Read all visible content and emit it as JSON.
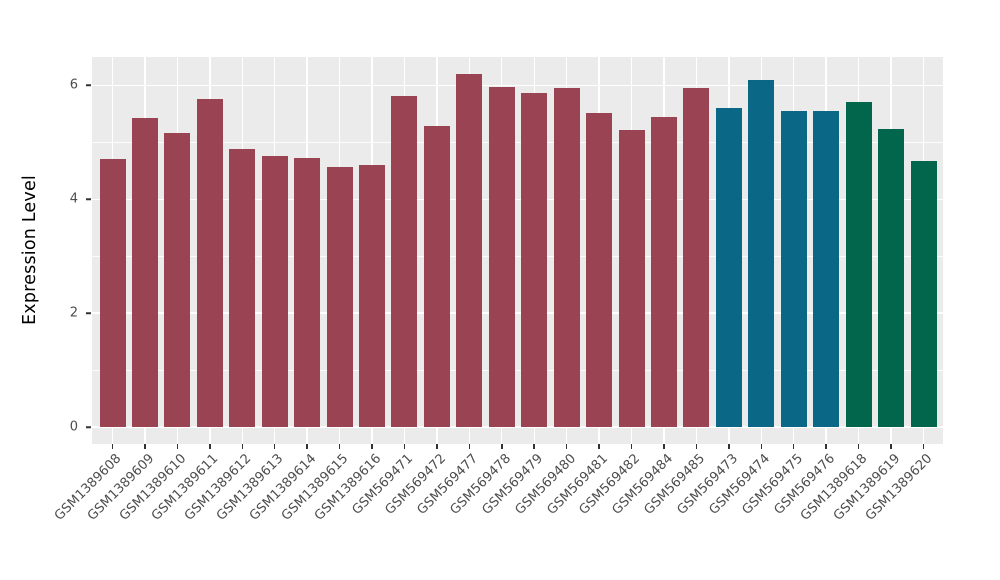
{
  "chart_data": {
    "type": "bar",
    "title": "",
    "xlabel": "",
    "ylabel": "Expression Level",
    "ylim": [
      0,
      6.5
    ],
    "yticks_major": [
      0,
      2,
      4,
      6
    ],
    "yticks_minor": [
      1,
      3,
      5
    ],
    "legend_position": "none",
    "grid": "white major+minor horizontal lines and per-category vertical lines on grey panel",
    "panel_bg": "#EBEBEB",
    "grid_color": "#FFFFFF",
    "axis_text_color": "#4D4D4D",
    "groups": [
      {
        "name": "group-red",
        "color": "#9A4352"
      },
      {
        "name": "group-blue",
        "color": "#0B6786"
      },
      {
        "name": "group-green",
        "color": "#01664B"
      }
    ],
    "bars": [
      {
        "label": "GSM1389608",
        "value": 4.7,
        "group": 0
      },
      {
        "label": "GSM1389609",
        "value": 5.43,
        "group": 0
      },
      {
        "label": "GSM1389610",
        "value": 5.17,
        "group": 0
      },
      {
        "label": "GSM1389611",
        "value": 5.77,
        "group": 0
      },
      {
        "label": "GSM1389612",
        "value": 4.89,
        "group": 0
      },
      {
        "label": "GSM1389613",
        "value": 4.76,
        "group": 0
      },
      {
        "label": "GSM1389614",
        "value": 4.73,
        "group": 0
      },
      {
        "label": "GSM1389615",
        "value": 4.56,
        "group": 0
      },
      {
        "label": "GSM1389616",
        "value": 4.6,
        "group": 0
      },
      {
        "label": "GSM569471",
        "value": 5.81,
        "group": 0
      },
      {
        "label": "GSM569472",
        "value": 5.28,
        "group": 0
      },
      {
        "label": "GSM569477",
        "value": 6.2,
        "group": 0
      },
      {
        "label": "GSM569478",
        "value": 5.97,
        "group": 0
      },
      {
        "label": "GSM569479",
        "value": 5.86,
        "group": 0
      },
      {
        "label": "GSM569480",
        "value": 5.95,
        "group": 0
      },
      {
        "label": "GSM569481",
        "value": 5.52,
        "group": 0
      },
      {
        "label": "GSM569482",
        "value": 5.22,
        "group": 0
      },
      {
        "label": "GSM569484",
        "value": 5.44,
        "group": 0
      },
      {
        "label": "GSM569485",
        "value": 5.95,
        "group": 0
      },
      {
        "label": "GSM569473",
        "value": 5.6,
        "group": 1
      },
      {
        "label": "GSM569474",
        "value": 6.09,
        "group": 1
      },
      {
        "label": "GSM569475",
        "value": 5.56,
        "group": 1
      },
      {
        "label": "GSM569476",
        "value": 5.56,
        "group": 1
      },
      {
        "label": "GSM1389618",
        "value": 5.71,
        "group": 2
      },
      {
        "label": "GSM1389619",
        "value": 5.24,
        "group": 2
      },
      {
        "label": "GSM1389620",
        "value": 4.67,
        "group": 2
      }
    ]
  }
}
